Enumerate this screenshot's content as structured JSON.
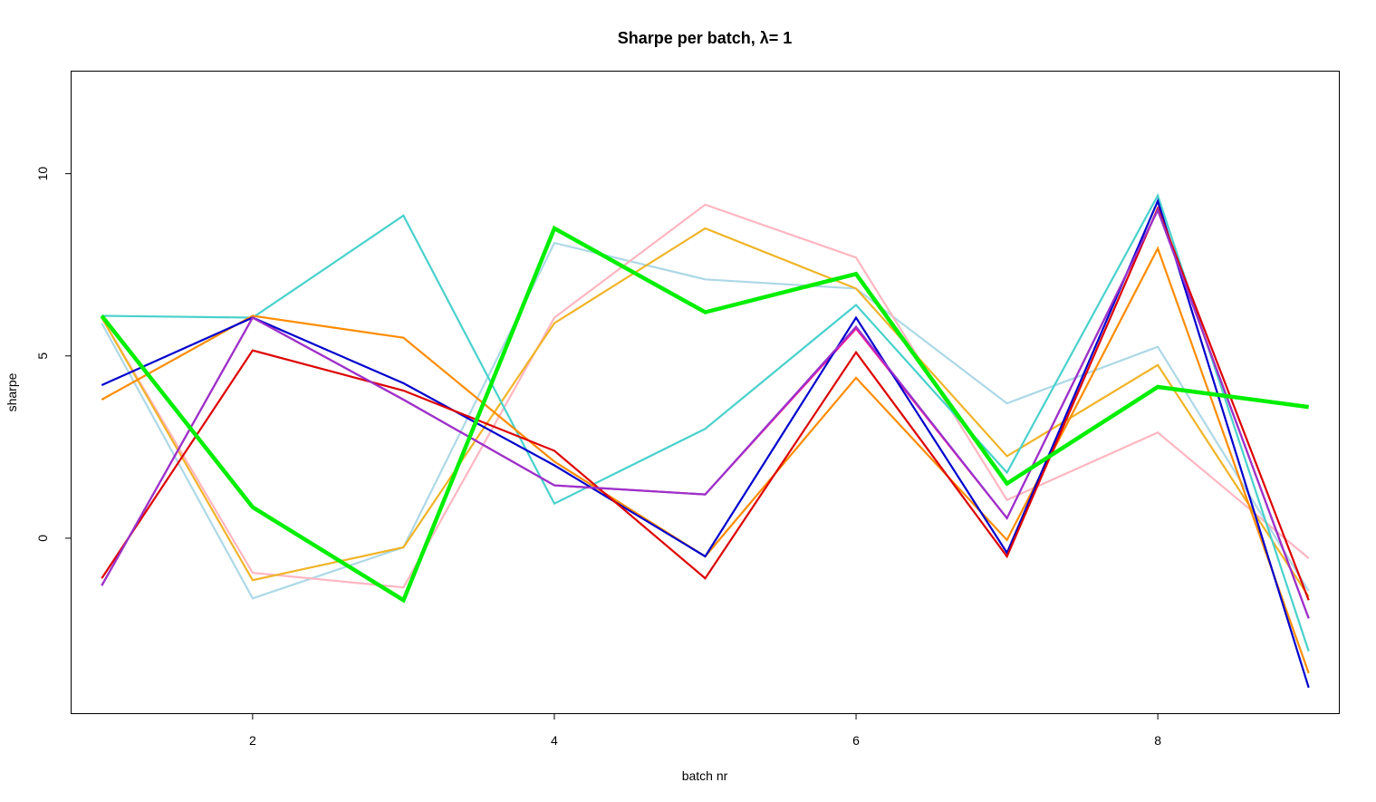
{
  "chart_data": {
    "type": "line",
    "title": "Sharpe per batch, λ= 1",
    "xlabel": "batch nr",
    "ylabel": "sharpe",
    "x": [
      1,
      2,
      3,
      4,
      5,
      6,
      7,
      8,
      9
    ],
    "xlim": [
      0.8,
      9.2
    ],
    "ylim": [
      -4.8,
      12.8
    ],
    "x_ticks": [
      2,
      4,
      6,
      8
    ],
    "y_ticks": [
      0,
      5,
      10
    ],
    "grid": false,
    "legend": "none",
    "series": [
      {
        "color": "#ADD8E6",
        "values": [
          5.9,
          -1.65,
          -0.25,
          8.1,
          7.1,
          6.85,
          3.7,
          5.25,
          -1.45
        ]
      },
      {
        "color": "#FFB6C1",
        "values": [
          6.05,
          -0.95,
          -1.35,
          6.05,
          9.15,
          7.7,
          1.05,
          2.9,
          -0.55
        ]
      },
      {
        "color": "#F0B428",
        "values": [
          6.05,
          -1.15,
          -0.25,
          5.9,
          8.5,
          6.85,
          2.25,
          4.75,
          -1.6
        ]
      },
      {
        "color": "#48D1CC",
        "values": [
          6.1,
          6.05,
          8.85,
          0.95,
          3.0,
          6.4,
          1.8,
          9.4,
          -3.1
        ]
      },
      {
        "color": "#FF8C00",
        "values": [
          3.8,
          6.1,
          5.5,
          2.1,
          -0.5,
          4.4,
          -0.05,
          7.95,
          -3.7
        ]
      },
      {
        "color": "#FF1493",
        "values": [
          -1.3,
          6.05,
          3.8,
          1.45,
          1.2,
          5.75,
          0.55,
          9.0,
          -2.2
        ]
      },
      {
        "color": "#0000CD",
        "values": [
          4.2,
          6.05,
          4.25,
          2.0,
          -0.5,
          6.05,
          -0.4,
          9.25,
          -4.1
        ]
      },
      {
        "color": "#DD0000",
        "values": [
          -1.1,
          5.15,
          4.05,
          2.4,
          -1.1,
          5.1,
          -0.5,
          9.05,
          -1.7
        ]
      },
      {
        "color": "#9932CC",
        "values": [
          -1.3,
          6.05,
          3.8,
          1.45,
          1.2,
          5.8,
          0.55,
          9.0,
          -2.2
        ]
      },
      {
        "color": "#00EE00",
        "values": [
          6.1,
          0.85,
          -1.7,
          8.5,
          6.2,
          7.25,
          1.5,
          4.15,
          3.6
        ]
      }
    ]
  }
}
